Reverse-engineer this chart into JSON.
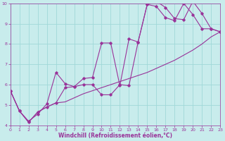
{
  "xlabel": "Windchill (Refroidissement éolien,°C)",
  "xlim": [
    0,
    23
  ],
  "ylim": [
    4,
    10
  ],
  "xticks": [
    0,
    1,
    2,
    3,
    4,
    5,
    6,
    7,
    8,
    9,
    10,
    11,
    12,
    13,
    14,
    15,
    16,
    17,
    18,
    19,
    20,
    21,
    22,
    23
  ],
  "yticks": [
    4,
    5,
    6,
    7,
    8,
    9,
    10
  ],
  "background_color": "#c8ecec",
  "grid_color": "#a0d8d8",
  "line_color": "#993399",
  "spine_color": "#993399",
  "line1_x": [
    0,
    1,
    2,
    3,
    4,
    5,
    6,
    7,
    8,
    9,
    10,
    11,
    12,
    13,
    14,
    15,
    16,
    17,
    18,
    19,
    20,
    21,
    22,
    23
  ],
  "line1_y": [
    5.7,
    4.7,
    4.15,
    4.65,
    4.9,
    5.1,
    5.15,
    5.35,
    5.55,
    5.7,
    5.85,
    6.0,
    6.15,
    6.3,
    6.45,
    6.6,
    6.8,
    7.0,
    7.2,
    7.45,
    7.7,
    8.0,
    8.35,
    8.6
  ],
  "line2_x": [
    0,
    1,
    2,
    3,
    4,
    5,
    6,
    7,
    8,
    9,
    10,
    11,
    12,
    13,
    14,
    15,
    16,
    17,
    18,
    19,
    20,
    21,
    22,
    23
  ],
  "line2_y": [
    5.7,
    4.7,
    4.2,
    4.55,
    5.05,
    6.6,
    6.05,
    5.9,
    6.3,
    6.35,
    8.05,
    8.05,
    5.95,
    8.25,
    8.1,
    9.95,
    10.1,
    9.8,
    9.25,
    9.2,
    10.1,
    9.5,
    8.75,
    8.6
  ],
  "line3_x": [
    0,
    1,
    2,
    3,
    4,
    5,
    6,
    7,
    8,
    9,
    10,
    11,
    12,
    13,
    14,
    15,
    16,
    17,
    18,
    19,
    20,
    21,
    22,
    23
  ],
  "line3_y": [
    5.7,
    4.7,
    4.15,
    4.65,
    4.9,
    5.1,
    5.85,
    5.9,
    6.0,
    6.0,
    5.5,
    5.5,
    6.0,
    5.95,
    8.1,
    9.95,
    9.85,
    9.3,
    9.15,
    10.0,
    9.45,
    8.75,
    8.75,
    8.6
  ],
  "marker": "D",
  "marker_size": 1.8,
  "line_width": 0.8,
  "tick_fontsize": 4.5,
  "xlabel_fontsize": 5.5
}
